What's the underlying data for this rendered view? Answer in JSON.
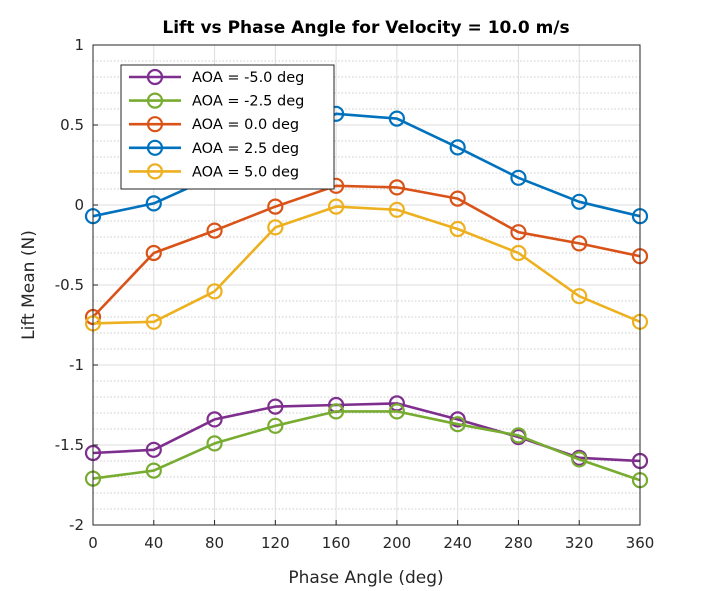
{
  "chart_data": {
    "type": "line",
    "title": "Lift vs Phase Angle for Velocity = 10.0 m/s",
    "xlabel": "Phase Angle (deg)",
    "ylabel": "Lift Mean (N)",
    "xlim": [
      0,
      360
    ],
    "ylim": [
      -2,
      1
    ],
    "x": [
      0,
      40,
      80,
      120,
      160,
      200,
      240,
      280,
      320,
      360
    ],
    "xticks": [
      "0",
      "40",
      "80",
      "120",
      "160",
      "200",
      "240",
      "280",
      "320",
      "360"
    ],
    "yticks": [
      "1",
      "0.5",
      "0",
      "-0.5",
      "-1",
      "-1.5",
      "-2"
    ],
    "ytick_values": [
      1,
      0.5,
      0,
      -0.5,
      -1,
      -1.5,
      -2
    ],
    "grid": true,
    "minor_grid_y": true,
    "legend_position": "top-left",
    "series": [
      {
        "name": "AOA = -5.0 deg",
        "color": "#7E2F8E",
        "values": [
          -1.55,
          -1.53,
          -1.34,
          -1.26,
          -1.25,
          -1.24,
          -1.34,
          -1.45,
          -1.58,
          -1.6
        ]
      },
      {
        "name": "AOA = -2.5 deg",
        "color": "#77AC30",
        "values": [
          -1.71,
          -1.66,
          -1.49,
          -1.38,
          -1.29,
          -1.29,
          -1.37,
          -1.44,
          -1.59,
          -1.72
        ]
      },
      {
        "name": "AOA = 0.0 deg",
        "color": "#D95319",
        "values": [
          -0.7,
          -0.3,
          -0.16,
          -0.01,
          0.12,
          0.11,
          0.04,
          -0.17,
          -0.24,
          -0.32
        ]
      },
      {
        "name": "AOA = 2.5 deg",
        "color": "#0072BD",
        "values": [
          -0.07,
          0.01,
          0.18,
          0.39,
          0.57,
          0.54,
          0.36,
          0.17,
          0.02,
          -0.07
        ]
      },
      {
        "name": "AOA = 5.0 deg",
        "color": "#EDB120",
        "values": [
          -0.74,
          -0.73,
          -0.54,
          -0.14,
          -0.01,
          -0.03,
          -0.15,
          -0.3,
          -0.57,
          -0.73
        ]
      }
    ]
  }
}
